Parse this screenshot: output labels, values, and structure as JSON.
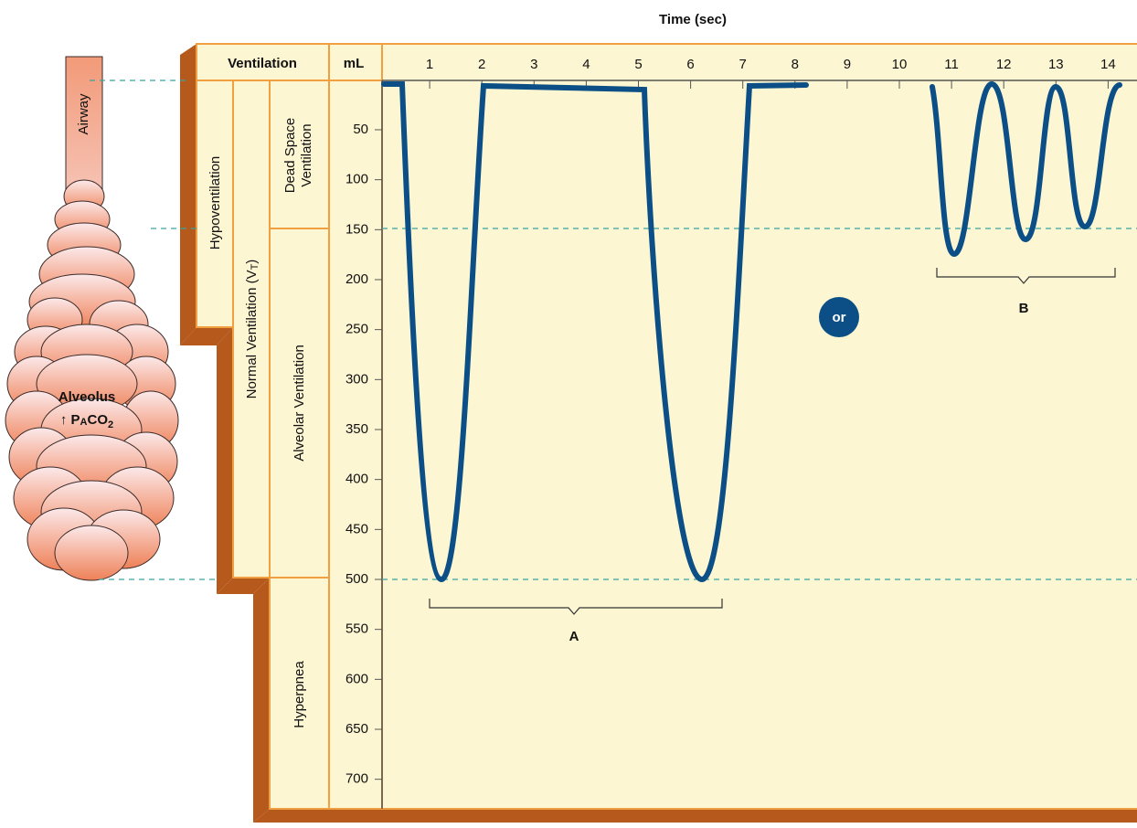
{
  "header": {
    "title": "Time (sec)",
    "ventilation": "Ventilation",
    "unit": "mL"
  },
  "columns": {
    "hypoventilation": "Hypoventilation",
    "normal_ventilation": {
      "text": "Normal Ventilation (V",
      "sub": "T",
      "close": ")"
    },
    "dead_space": [
      "Dead Space",
      "Ventilation"
    ],
    "alveolar": "Alveolar Ventilation",
    "hyperpnea": "Hyperpnea"
  },
  "time_ticks": [
    1,
    2,
    3,
    4,
    5,
    6,
    7,
    8,
    9,
    10,
    11,
    12,
    13,
    14
  ],
  "volume_ticks": [
    50,
    100,
    150,
    200,
    250,
    300,
    350,
    400,
    450,
    500,
    550,
    600,
    650,
    700
  ],
  "patterns": {
    "a": "A",
    "b": "B",
    "or": "or"
  },
  "figure": {
    "airway": "Airway",
    "alveolus": "Alveolus",
    "pressure": {
      "lead": "↑ P",
      "sub_a": "A",
      "co": "CO",
      "sub_2": "2"
    }
  }
}
